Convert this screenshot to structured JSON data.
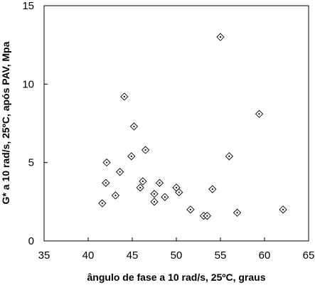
{
  "chart_data": {
    "type": "scatter",
    "xlabel": "ângulo de fase a 10 rad/s, 25ºC, graus",
    "ylabel": "G* a 10 rad/s, 25ºC, após PAV, Mpa",
    "xlim": [
      35,
      65
    ],
    "ylim": [
      0,
      15
    ],
    "xticks": [
      "35",
      "40",
      "45",
      "50",
      "55",
      "60",
      "65"
    ],
    "yticks": [
      "0",
      "5",
      "10",
      "15"
    ],
    "grid": false,
    "marker": "diamond-with-dot",
    "series": [
      {
        "points": [
          {
            "x": 41.6,
            "y": 2.4
          },
          {
            "x": 42.0,
            "y": 3.7
          },
          {
            "x": 42.1,
            "y": 5.0
          },
          {
            "x": 43.1,
            "y": 2.9
          },
          {
            "x": 43.6,
            "y": 4.4
          },
          {
            "x": 44.1,
            "y": 9.2
          },
          {
            "x": 44.9,
            "y": 5.4
          },
          {
            "x": 45.2,
            "y": 7.3
          },
          {
            "x": 45.9,
            "y": 3.4
          },
          {
            "x": 46.2,
            "y": 3.8
          },
          {
            "x": 46.5,
            "y": 5.8
          },
          {
            "x": 47.5,
            "y": 2.5
          },
          {
            "x": 47.5,
            "y": 3.0
          },
          {
            "x": 48.1,
            "y": 3.7
          },
          {
            "x": 48.7,
            "y": 2.8
          },
          {
            "x": 50.0,
            "y": 3.4
          },
          {
            "x": 50.3,
            "y": 3.1
          },
          {
            "x": 51.6,
            "y": 2.0
          },
          {
            "x": 53.1,
            "y": 1.6
          },
          {
            "x": 53.5,
            "y": 1.6
          },
          {
            "x": 54.1,
            "y": 3.3
          },
          {
            "x": 55.0,
            "y": 13.0
          },
          {
            "x": 56.0,
            "y": 5.4
          },
          {
            "x": 56.9,
            "y": 1.8
          },
          {
            "x": 59.4,
            "y": 8.1
          },
          {
            "x": 62.1,
            "y": 2.0
          }
        ]
      }
    ]
  }
}
